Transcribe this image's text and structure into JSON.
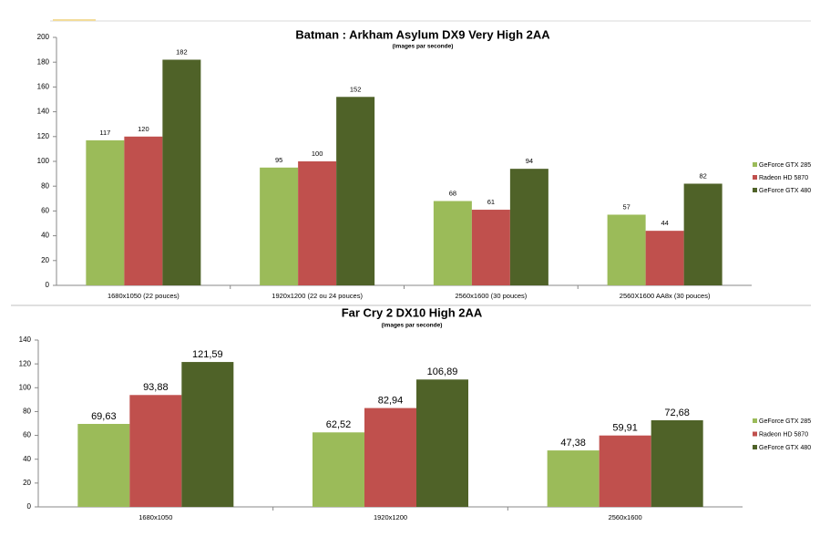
{
  "chart_data": [
    {
      "type": "bar",
      "title": "Batman : Arkham Asylum DX9 Very High 2AA",
      "subtitle": "(images par seconde)",
      "categories": [
        "1680x1050 (22 pouces)",
        "1920x1200 (22 ou 24 pouces)",
        "2560x1600 (30 pouces)",
        "2560X1600 AA8x (30 pouces)"
      ],
      "series": [
        {
          "name": "GeForce GTX 285",
          "color": "#9bbb59",
          "values": [
            117,
            95,
            68,
            57
          ]
        },
        {
          "name": "Radeon HD 5870",
          "color": "#c0504d",
          "values": [
            120,
            100,
            61,
            44
          ]
        },
        {
          "name": "GeForce GTX 480",
          "color": "#4f6228",
          "values": [
            182,
            152,
            94,
            82
          ]
        }
      ],
      "ylim": [
        0,
        200
      ],
      "yticks": [
        0,
        20,
        40,
        60,
        80,
        100,
        120,
        140,
        160,
        180,
        200
      ],
      "legend": "right"
    },
    {
      "type": "bar",
      "title": "Far Cry 2 DX10 High 2AA",
      "subtitle": "(images par seconde)",
      "categories": [
        "1680x1050",
        "1920x1200",
        "2560x1600"
      ],
      "series": [
        {
          "name": "GeForce GTX 285",
          "color": "#9bbb59",
          "values": [
            69.63,
            62.52,
            47.38
          ],
          "value_labels": [
            "69,63",
            "62,52",
            "47,38"
          ]
        },
        {
          "name": "Radeon HD 5870",
          "color": "#c0504d",
          "values": [
            93.88,
            82.94,
            59.91
          ],
          "value_labels": [
            "93,88",
            "82,94",
            "59,91"
          ]
        },
        {
          "name": "GeForce GTX 480",
          "color": "#4f6228",
          "values": [
            121.59,
            106.89,
            72.68
          ],
          "value_labels": [
            "121,59",
            "106,89",
            "72,68"
          ]
        }
      ],
      "ylim": [
        0,
        140
      ],
      "yticks": [
        0,
        20,
        40,
        60,
        80,
        100,
        120,
        140
      ],
      "legend": "right"
    }
  ]
}
